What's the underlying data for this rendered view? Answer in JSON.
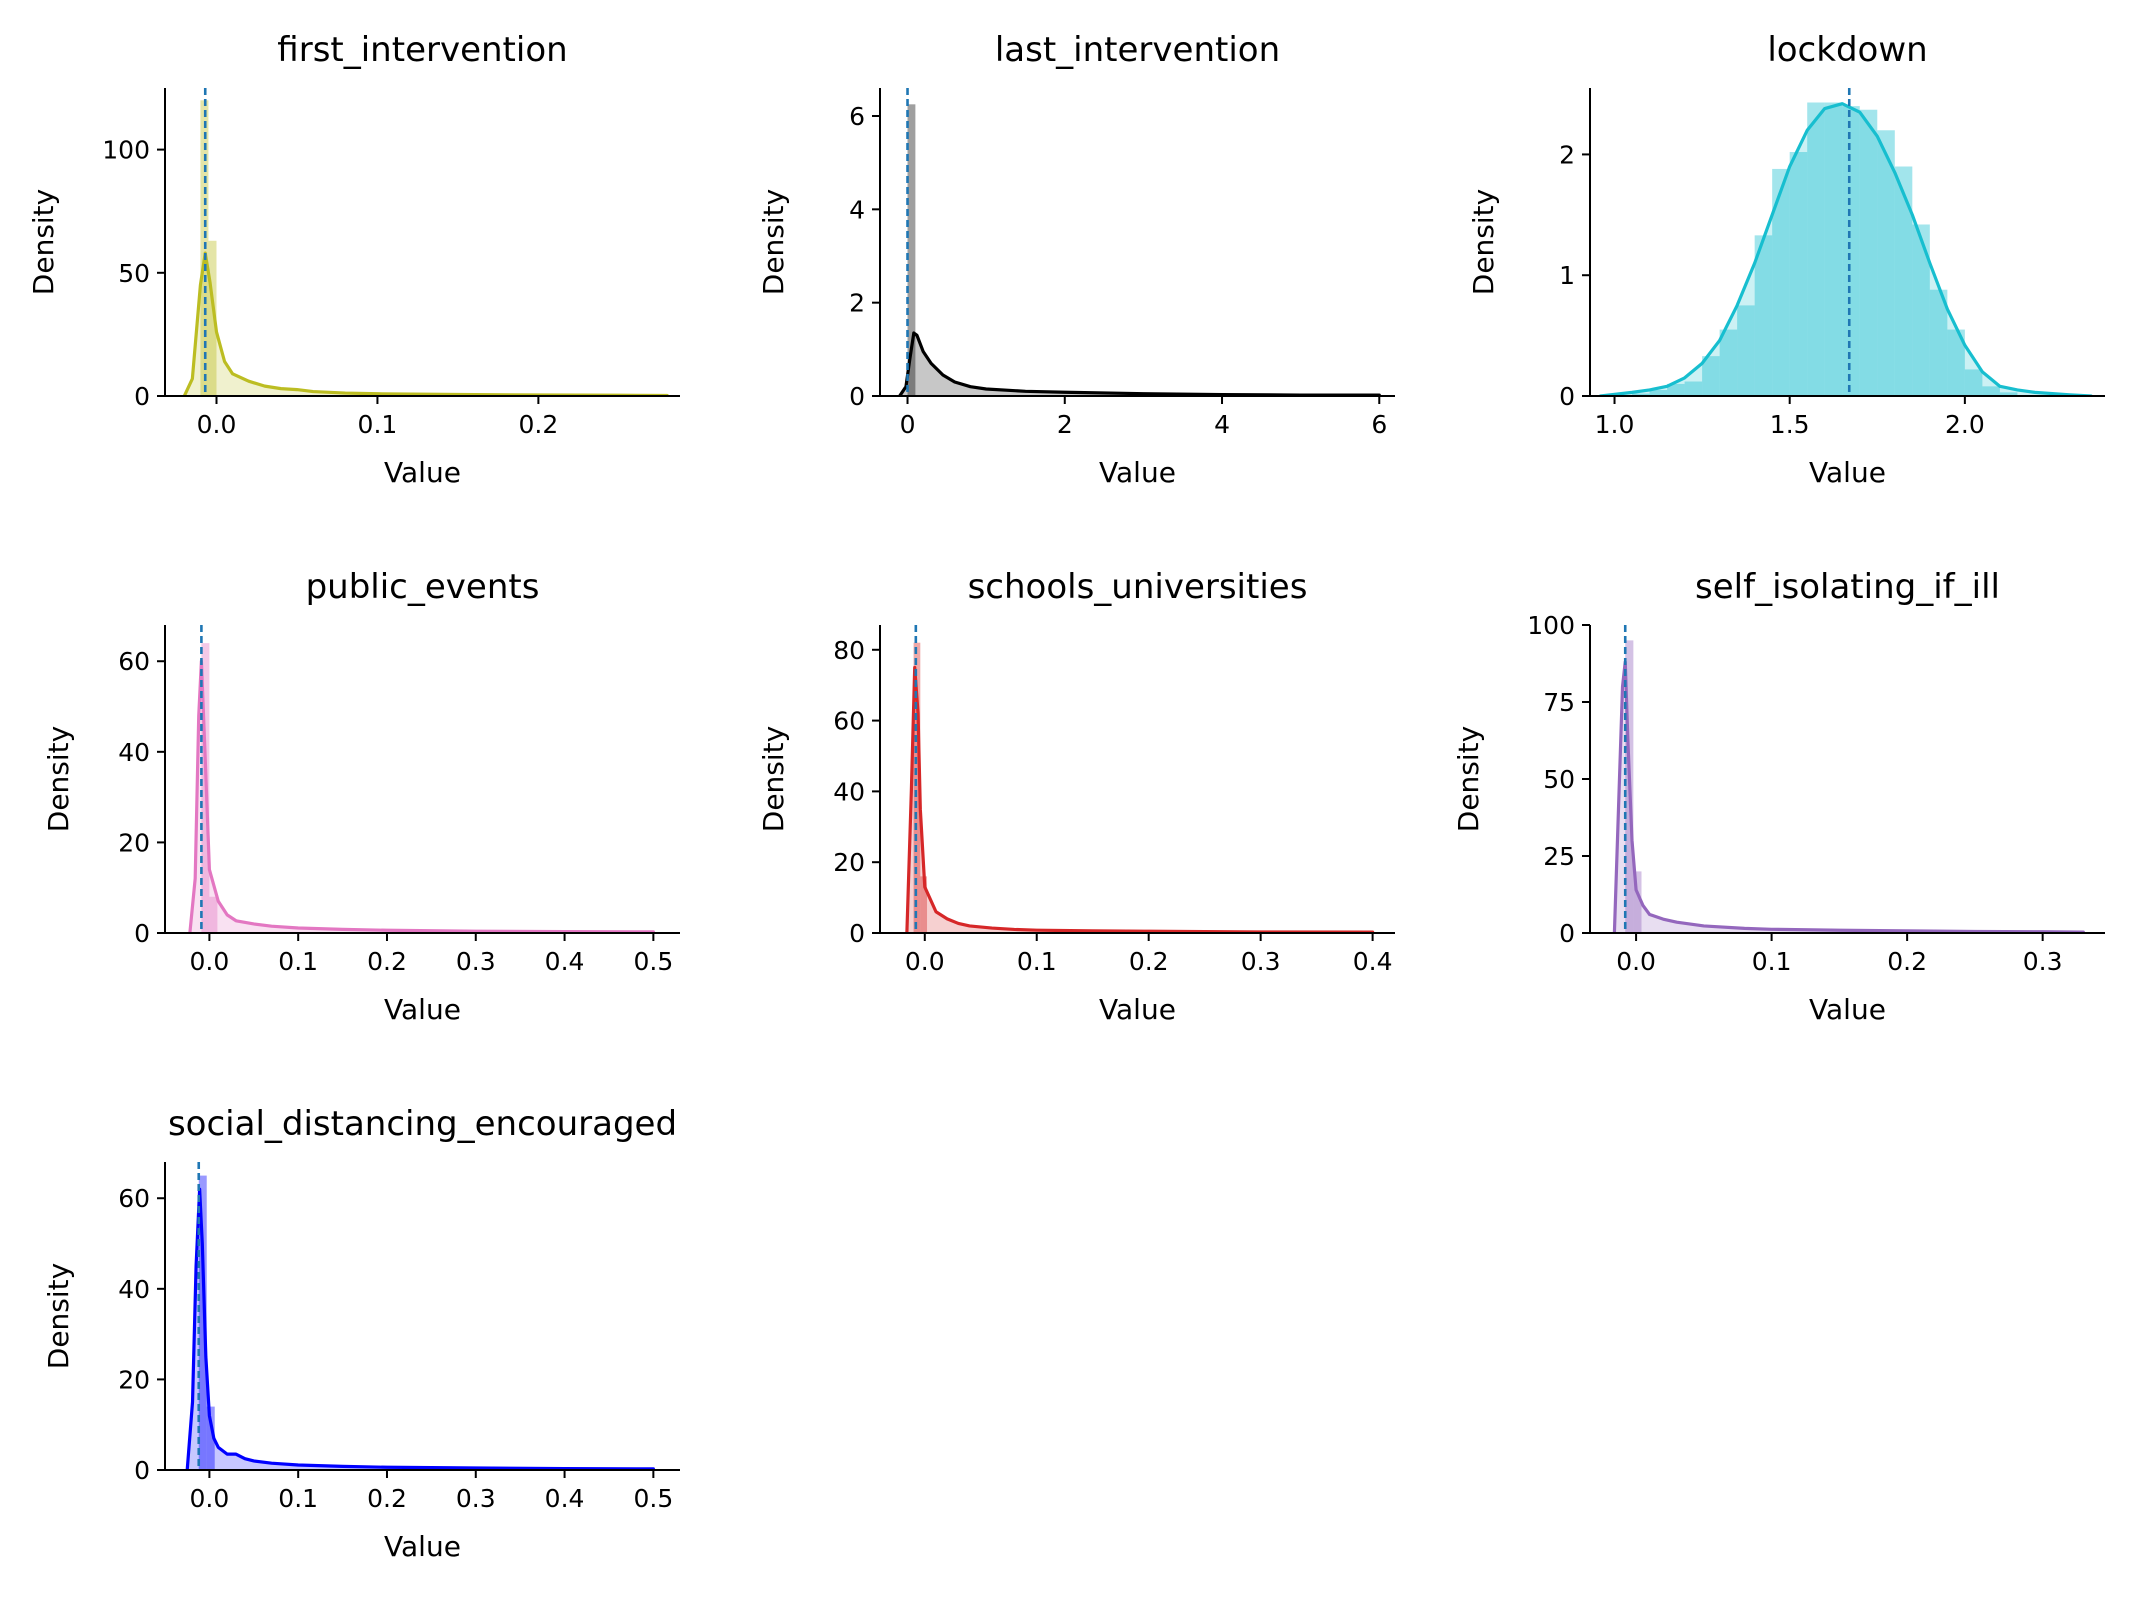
{
  "chart_data": [
    {
      "type": "area",
      "title": "first_intervention",
      "xlabel": "Value",
      "ylabel": "Density",
      "color": "#bcbd22",
      "xlim": [
        -0.032,
        0.288
      ],
      "ylim": [
        0,
        125
      ],
      "xticks": [
        0.0,
        0.1,
        0.2
      ],
      "xtick_labels": [
        "0.0",
        "0.1",
        "0.2"
      ],
      "yticks": [
        0,
        50,
        100
      ],
      "ytick_labels": [
        "0",
        "50",
        "100"
      ],
      "median": -0.007,
      "histogram": {
        "bin_width": 0.005,
        "bins": [
          [
            -0.01,
            120
          ],
          [
            -0.005,
            63
          ]
        ]
      },
      "kde": {
        "x": [
          -0.02,
          -0.015,
          -0.01,
          -0.007,
          -0.004,
          0.0,
          0.005,
          0.01,
          0.02,
          0.03,
          0.04,
          0.05,
          0.06,
          0.08,
          0.1,
          0.15,
          0.2,
          0.25,
          0.28
        ],
        "y": [
          0,
          7,
          45,
          58,
          46,
          26,
          14,
          9,
          6,
          4,
          3,
          2.6,
          1.8,
          1.2,
          0.9,
          0.6,
          0.4,
          0.3,
          0.2
        ]
      },
      "grid": false,
      "legend": "none"
    },
    {
      "type": "area",
      "title": "last_intervention",
      "xlabel": "Value",
      "ylabel": "Density",
      "color": "#000000",
      "hist_color": "#7f7f7f",
      "xlim": [
        -0.35,
        6.2
      ],
      "ylim": [
        0,
        6.6
      ],
      "xticks": [
        0,
        2,
        4,
        6
      ],
      "xtick_labels": [
        "0",
        "2",
        "4",
        "6"
      ],
      "yticks": [
        0,
        2,
        4,
        6
      ],
      "ytick_labels": [
        "0",
        "2",
        "4",
        "6"
      ],
      "median": 0.0,
      "histogram": {
        "bin_width": 0.1,
        "bins": [
          [
            0.0,
            6.25
          ]
        ]
      },
      "kde": {
        "x": [
          -0.1,
          -0.02,
          0.03,
          0.08,
          0.12,
          0.2,
          0.3,
          0.45,
          0.6,
          0.8,
          1.0,
          1.5,
          2.0,
          3.0,
          4.0,
          5.0,
          6.0
        ],
        "y": [
          0,
          0.2,
          0.8,
          1.35,
          1.3,
          0.95,
          0.7,
          0.45,
          0.3,
          0.2,
          0.15,
          0.1,
          0.08,
          0.05,
          0.03,
          0.02,
          0.02
        ]
      },
      "grid": false,
      "legend": "none"
    },
    {
      "type": "area",
      "title": "lockdown",
      "xlabel": "Value",
      "ylabel": "Density",
      "color": "#17becf",
      "xlim": [
        0.93,
        2.4
      ],
      "ylim": [
        0,
        2.55
      ],
      "xticks": [
        1.0,
        1.5,
        2.0
      ],
      "xtick_labels": [
        "1.0",
        "1.5",
        "2.0"
      ],
      "yticks": [
        0,
        1,
        2
      ],
      "ytick_labels": [
        "0",
        "1",
        "2"
      ],
      "median": 1.67,
      "histogram": {
        "bin_width": 0.05,
        "bins": [
          [
            1.05,
            0.02
          ],
          [
            1.1,
            0.05
          ],
          [
            1.15,
            0.1
          ],
          [
            1.2,
            0.12
          ],
          [
            1.25,
            0.33
          ],
          [
            1.3,
            0.55
          ],
          [
            1.35,
            0.75
          ],
          [
            1.4,
            1.33
          ],
          [
            1.45,
            1.88
          ],
          [
            1.5,
            2.02
          ],
          [
            1.55,
            2.43
          ],
          [
            1.6,
            2.43
          ],
          [
            1.65,
            2.4
          ],
          [
            1.7,
            2.37
          ],
          [
            1.75,
            2.2
          ],
          [
            1.8,
            1.9
          ],
          [
            1.85,
            1.42
          ],
          [
            1.9,
            0.88
          ],
          [
            1.95,
            0.55
          ],
          [
            2.0,
            0.22
          ],
          [
            2.05,
            0.08
          ],
          [
            2.1,
            0.03
          ]
        ]
      },
      "kde": {
        "x": [
          0.96,
          1.05,
          1.1,
          1.15,
          1.2,
          1.25,
          1.3,
          1.35,
          1.4,
          1.45,
          1.5,
          1.55,
          1.6,
          1.65,
          1.7,
          1.75,
          1.8,
          1.85,
          1.9,
          1.95,
          2.0,
          2.05,
          2.1,
          2.15,
          2.2,
          2.3,
          2.36
        ],
        "y": [
          0.0,
          0.03,
          0.05,
          0.08,
          0.15,
          0.27,
          0.46,
          0.75,
          1.1,
          1.5,
          1.9,
          2.2,
          2.38,
          2.42,
          2.35,
          2.15,
          1.85,
          1.5,
          1.1,
          0.72,
          0.42,
          0.2,
          0.08,
          0.05,
          0.03,
          0.01,
          0.0
        ]
      },
      "grid": false,
      "legend": "none"
    },
    {
      "type": "area",
      "title": "public_events",
      "xlabel": "Value",
      "ylabel": "Density",
      "color": "#e377c2",
      "xlim": [
        -0.05,
        0.53
      ],
      "ylim": [
        0,
        68
      ],
      "xticks": [
        0.0,
        0.1,
        0.2,
        0.3,
        0.4,
        0.5
      ],
      "xtick_labels": [
        "0.0",
        "0.1",
        "0.2",
        "0.3",
        "0.4",
        "0.5"
      ],
      "yticks": [
        0,
        20,
        40,
        60
      ],
      "ytick_labels": [
        "0",
        "20",
        "40",
        "60"
      ],
      "median": -0.009,
      "histogram": {
        "bin_width": 0.009,
        "bins": [
          [
            -0.009,
            64
          ],
          [
            0.0,
            8
          ]
        ]
      },
      "kde": {
        "x": [
          -0.022,
          -0.016,
          -0.012,
          -0.009,
          -0.005,
          0.0,
          0.01,
          0.02,
          0.03,
          0.05,
          0.07,
          0.1,
          0.15,
          0.2,
          0.3,
          0.4,
          0.5
        ],
        "y": [
          0,
          12,
          48,
          60,
          40,
          14,
          7,
          4,
          2.7,
          2,
          1.5,
          1.1,
          0.8,
          0.6,
          0.4,
          0.3,
          0.25
        ]
      },
      "grid": false,
      "legend": "none"
    },
    {
      "type": "area",
      "title": "schools_universities",
      "xlabel": "Value",
      "ylabel": "Density",
      "color": "#d62728",
      "xlim": [
        -0.04,
        0.42
      ],
      "ylim": [
        0,
        87
      ],
      "xticks": [
        0.0,
        0.1,
        0.2,
        0.3,
        0.4
      ],
      "xtick_labels": [
        "0.0",
        "0.1",
        "0.2",
        "0.3",
        "0.4"
      ],
      "yticks": [
        0,
        20,
        40,
        60,
        80
      ],
      "ytick_labels": [
        "0",
        "20",
        "40",
        "60",
        "80"
      ],
      "median": -0.008,
      "histogram": {
        "bin_width": 0.006,
        "bins": [
          [
            -0.01,
            82
          ],
          [
            -0.004,
            16
          ]
        ]
      },
      "kde": {
        "x": [
          -0.016,
          -0.012,
          -0.009,
          -0.006,
          -0.004,
          0.0,
          0.01,
          0.02,
          0.03,
          0.04,
          0.06,
          0.08,
          0.1,
          0.15,
          0.2,
          0.3,
          0.4
        ],
        "y": [
          0,
          40,
          75,
          62,
          35,
          13,
          6,
          4,
          2.7,
          2,
          1.4,
          1,
          0.8,
          0.6,
          0.5,
          0.3,
          0.25
        ]
      },
      "grid": false,
      "legend": "none"
    },
    {
      "type": "area",
      "title": "self_isolating_if_ill",
      "xlabel": "Value",
      "ylabel": "Density",
      "color": "#9467bd",
      "xlim": [
        -0.034,
        0.346
      ],
      "ylim": [
        0,
        100
      ],
      "xticks": [
        0.0,
        0.1,
        0.2,
        0.3
      ],
      "xtick_labels": [
        "0.0",
        "0.1",
        "0.2",
        "0.3"
      ],
      "yticks": [
        0,
        25,
        50,
        75,
        100
      ],
      "ytick_labels": [
        "0",
        "25",
        "50",
        "75",
        "100"
      ],
      "median": -0.008,
      "histogram": {
        "bin_width": 0.006,
        "bins": [
          [
            -0.008,
            95
          ],
          [
            -0.002,
            20
          ]
        ]
      },
      "kde": {
        "x": [
          -0.016,
          -0.013,
          -0.01,
          -0.008,
          -0.006,
          -0.003,
          0.0,
          0.005,
          0.01,
          0.02,
          0.03,
          0.05,
          0.08,
          0.1,
          0.15,
          0.2,
          0.25,
          0.3,
          0.33
        ],
        "y": [
          0,
          40,
          80,
          88,
          62,
          30,
          14,
          9,
          6,
          4.5,
          3.5,
          2.3,
          1.5,
          1.2,
          0.9,
          0.7,
          0.5,
          0.4,
          0.3
        ]
      },
      "grid": false,
      "legend": "none"
    },
    {
      "type": "area",
      "title": "social_distancing_encouraged",
      "xlabel": "Value",
      "ylabel": "Density",
      "color": "#0000ff",
      "xlim": [
        -0.05,
        0.53
      ],
      "ylim": [
        0,
        68
      ],
      "xticks": [
        0.0,
        0.1,
        0.2,
        0.3,
        0.4,
        0.5
      ],
      "xtick_labels": [
        "0.0",
        "0.1",
        "0.2",
        "0.3",
        "0.4",
        "0.5"
      ],
      "yticks": [
        0,
        20,
        40,
        60
      ],
      "ytick_labels": [
        "0",
        "20",
        "40",
        "60"
      ],
      "median": -0.012,
      "histogram": {
        "bin_width": 0.009,
        "bins": [
          [
            -0.012,
            65
          ],
          [
            -0.003,
            14
          ]
        ]
      },
      "kde": {
        "x": [
          -0.025,
          -0.019,
          -0.015,
          -0.011,
          -0.008,
          -0.004,
          0.0,
          0.005,
          0.01,
          0.02,
          0.03,
          0.04,
          0.05,
          0.07,
          0.1,
          0.15,
          0.2,
          0.3,
          0.4,
          0.5
        ],
        "y": [
          0,
          15,
          45,
          62,
          50,
          25,
          12,
          7,
          5,
          3.5,
          3.5,
          2.5,
          2,
          1.5,
          1.1,
          0.8,
          0.6,
          0.45,
          0.3,
          0.25
        ]
      },
      "grid": false,
      "legend": "none"
    }
  ]
}
